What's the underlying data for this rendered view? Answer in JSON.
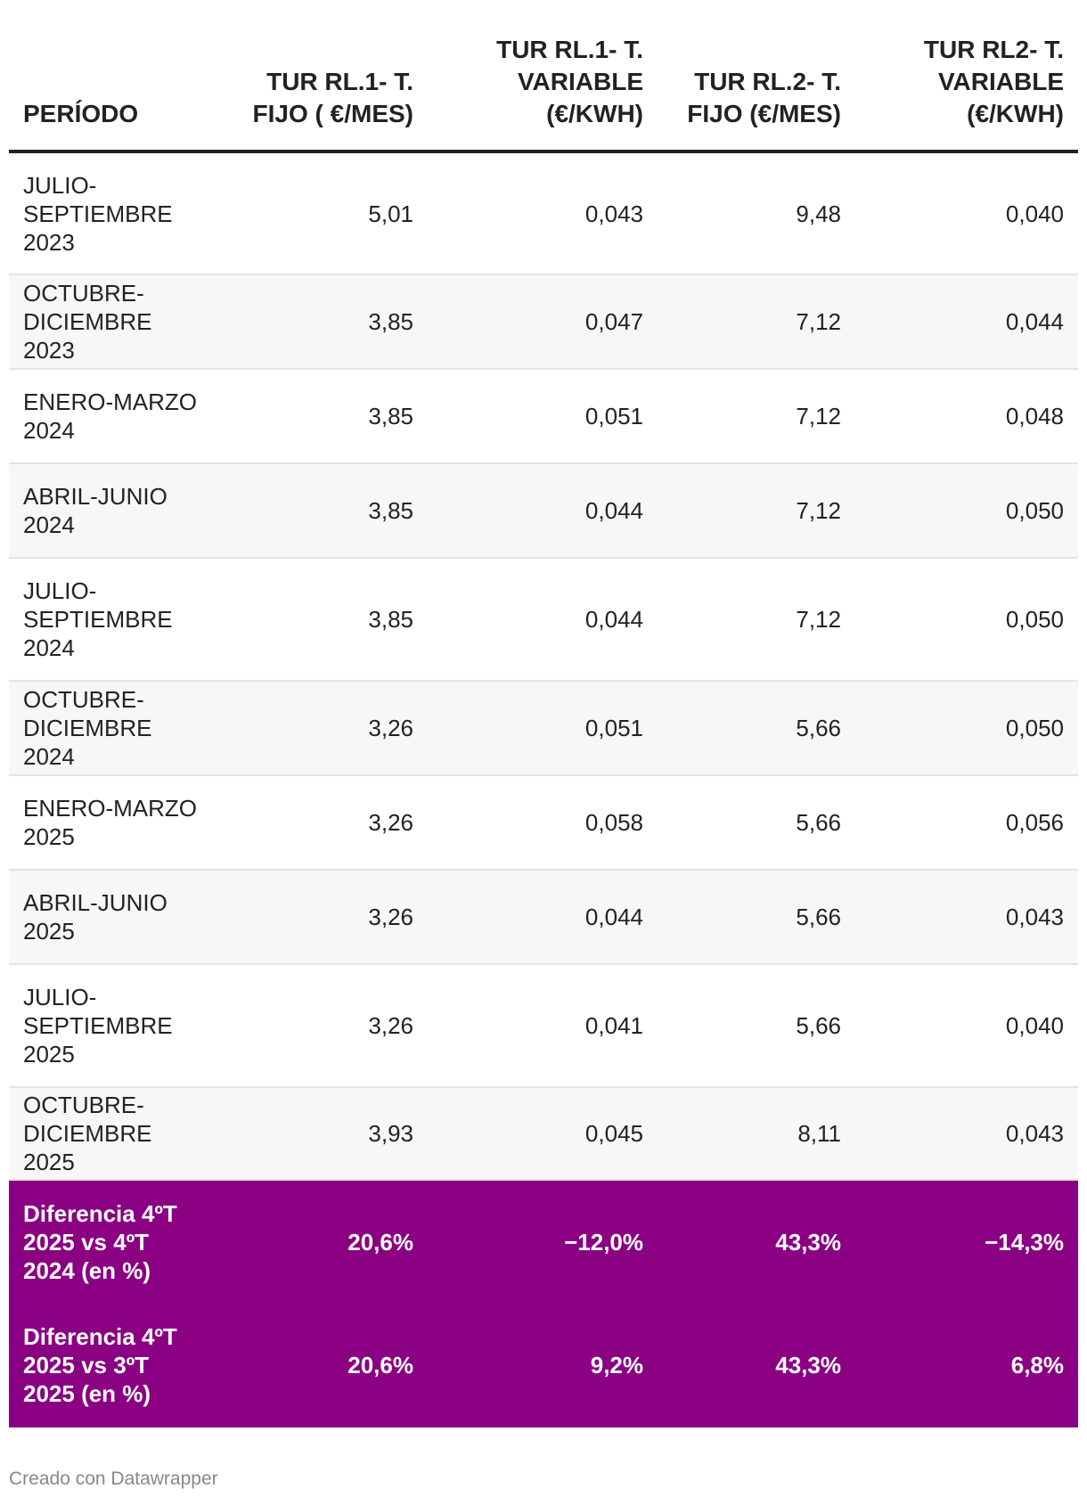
{
  "chart_data": {
    "type": "table",
    "columns": [
      "PERÍODO",
      "TUR RL.1- T. FIJO ( €/MES)",
      "TUR RL.1- T. VARIABLE (€/KWH)",
      "TUR RL.2- T. FIJO (€/MES)",
      "TUR RL2- T. VARIABLE (€/KWH)"
    ],
    "rows": [
      [
        "JULIO-SEPTIEMBRE 2023",
        "5,01",
        "0,043",
        "9,48",
        "0,040"
      ],
      [
        "OCTUBRE-DICIEMBRE 2023",
        "3,85",
        "0,047",
        "7,12",
        "0,044"
      ],
      [
        "ENERO-MARZO 2024",
        "3,85",
        "0,051",
        "7,12",
        "0,048"
      ],
      [
        "ABRIL-JUNIO 2024",
        "3,85",
        "0,044",
        "7,12",
        "0,050"
      ],
      [
        "JULIO-SEPTIEMBRE 2024",
        "3,85",
        "0,044",
        "7,12",
        "0,050"
      ],
      [
        "OCTUBRE-DICIEMBRE 2024",
        "3,26",
        "0,051",
        "5,66",
        "0,050"
      ],
      [
        "ENERO-MARZO 2025",
        "3,26",
        "0,058",
        "5,66",
        "0,056"
      ],
      [
        "ABRIL-JUNIO 2025",
        "3,26",
        "0,044",
        "5,66",
        "0,043"
      ],
      [
        "JULIO-SEPTIEMBRE 2025",
        "3,26",
        "0,041",
        "5,66",
        "0,040"
      ],
      [
        "OCTUBRE-DICIEMBRE 2025",
        "3,93",
        "0,045",
        "8,11",
        "0,043"
      ]
    ],
    "summary_rows": [
      [
        "Diferencia 4ºT 2025 vs 4ºT 2024 (en %)",
        "20,6%",
        "−12,0%",
        "43,3%",
        "−14,3%"
      ],
      [
        "Diferencia 4ºT 2025 vs 3ºT 2025 (en %)",
        "20,6%",
        "9,2%",
        "43,3%",
        "6,8%"
      ]
    ],
    "highlight_color": "#8b0083"
  },
  "footer": {
    "credit": "Creado con Datawrapper"
  }
}
